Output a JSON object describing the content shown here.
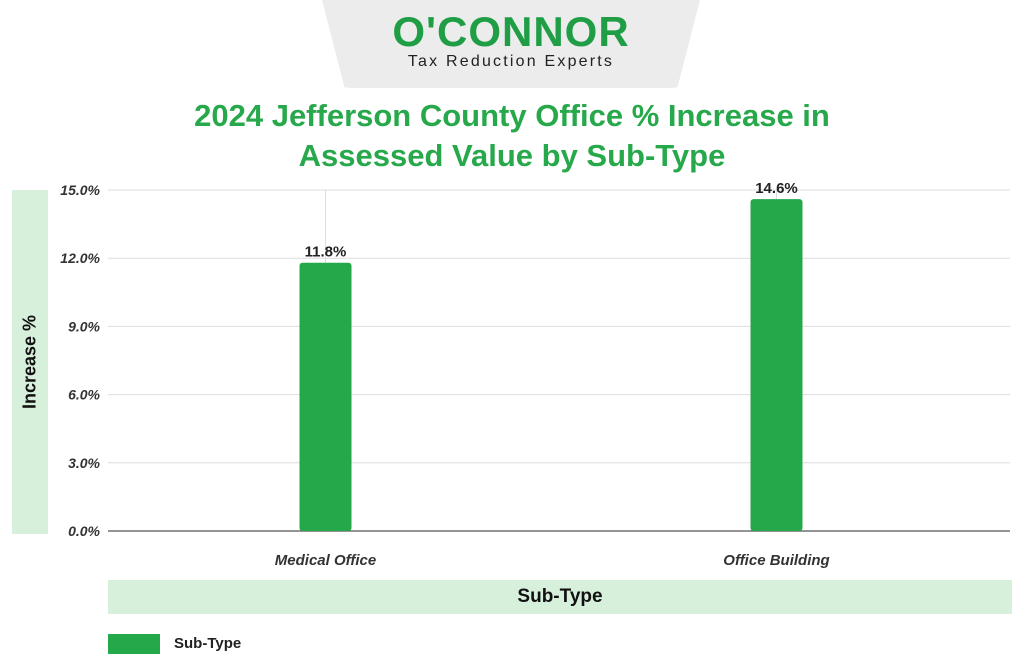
{
  "header": {
    "brand": "O'CONNOR",
    "tagline": "Tax Reduction Experts"
  },
  "colors": {
    "bar": "#24a84a",
    "title": "#27a94b",
    "label_band": "#d6f0db"
  },
  "chart_data": {
    "type": "bar",
    "title": "2024 Jefferson County Office % Increase in Assessed Value by Sub-Type",
    "title_lines": [
      "2024 Jefferson County Office % Increase in",
      "Assessed Value by Sub-Type"
    ],
    "xlabel": "Sub-Type",
    "ylabel": "Increase %",
    "categories": [
      "Medical Office",
      "Office Building"
    ],
    "series": [
      {
        "name": "Sub-Type",
        "values": [
          11.8,
          14.6
        ]
      }
    ],
    "data_labels": [
      "11.8%",
      "14.6%"
    ],
    "ylim": [
      0,
      15
    ],
    "yticks": [
      0,
      3,
      6,
      9,
      12,
      15
    ],
    "ytick_labels": [
      "0.0%",
      "3.0%",
      "6.0%",
      "9.0%",
      "12.0%",
      "15.0%"
    ],
    "grid": true,
    "legend": "bottom-left"
  }
}
